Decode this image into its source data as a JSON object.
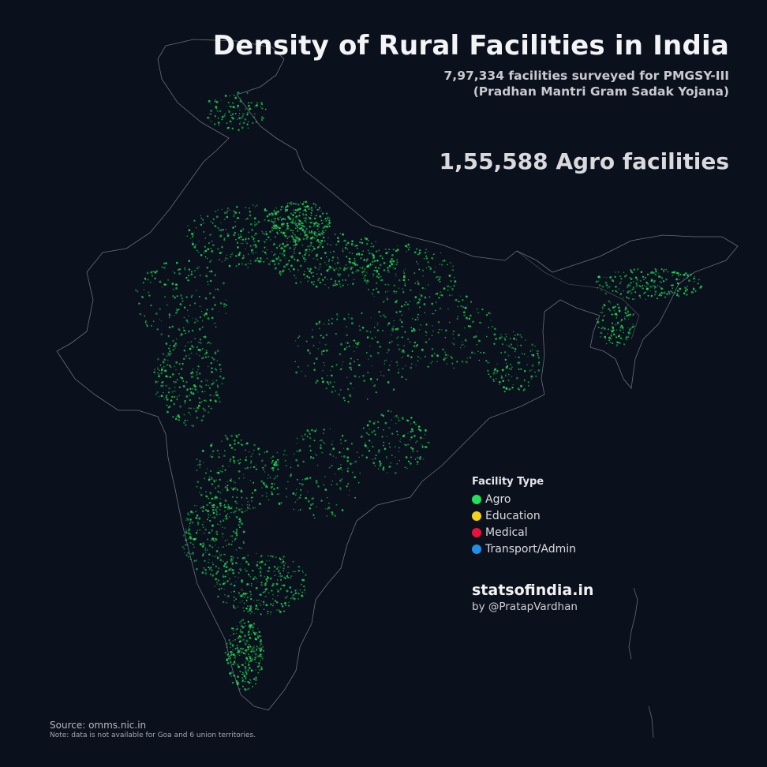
{
  "title": "Density of Rural Facilities in India",
  "subtitle": {
    "line1": "7,97,334 facilities surveyed for PMGSY-III",
    "line2": "(Pradhan Mantri Gram Sadak Yojana)"
  },
  "highlight": "1,55,588 Agro facilities",
  "legend": {
    "title": "Facility Type",
    "items": [
      {
        "label": "Agro",
        "color": "#22e05a"
      },
      {
        "label": "Education",
        "color": "#f2d21b"
      },
      {
        "label": "Medical",
        "color": "#e8123c"
      },
      {
        "label": "Transport/Admin",
        "color": "#1f8fe8"
      }
    ]
  },
  "brand": {
    "name": "statsofindia.in",
    "by": "by @PratapVardhan"
  },
  "footer": {
    "source": "Source: omms.nic.in",
    "note": "Note: data is not available for Goa and 6 union territories."
  },
  "map_style": {
    "background": "#0a101c",
    "outline": "#8a8f9a",
    "dot": "#22e05a"
  }
}
